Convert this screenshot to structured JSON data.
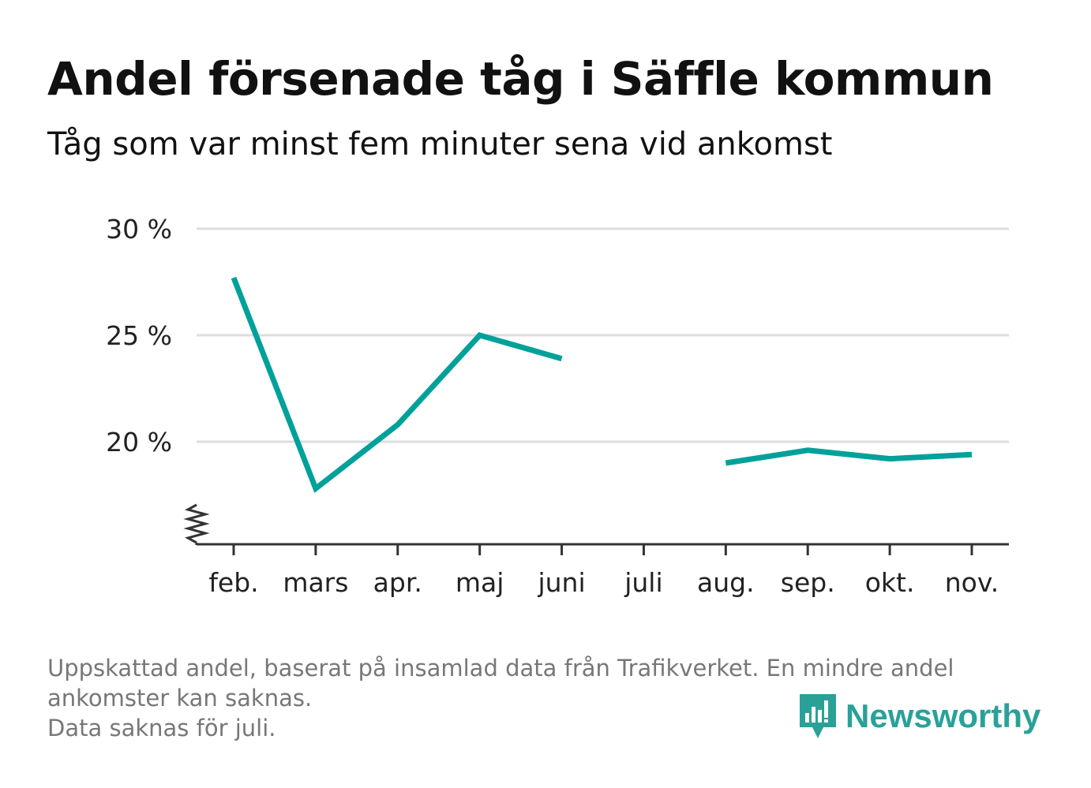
{
  "chart_data": {
    "type": "line",
    "title": "Andel försenade tåg i Säffle kommun",
    "subtitle": "Tåg som var minst fem minuter sena vid ankomst",
    "categories": [
      "feb.",
      "mars",
      "apr.",
      "maj",
      "juni",
      "juli",
      "aug.",
      "sep.",
      "okt.",
      "nov."
    ],
    "series": [
      {
        "values": [
          27.7,
          17.8,
          20.8,
          25.0,
          23.9,
          null,
          19.0,
          19.6,
          19.2,
          19.4
        ]
      }
    ],
    "y_ticks": [
      {
        "value": 20,
        "label": "20 %"
      },
      {
        "value": 25,
        "label": "25 %"
      },
      {
        "value": 30,
        "label": "30 %"
      }
    ],
    "ylim": [
      15.2,
      30
    ],
    "y_axis_break": true,
    "grid": true,
    "line_color": "#00a19a",
    "footnote": [
      "Uppskattad andel, baserat på insamlad data från Trafikverket. En mindre andel",
      "ankomster kan saknas.",
      "Data saknas för juli."
    ]
  },
  "logo": {
    "text": "Newsworthy",
    "icon": "newsworthy-chart-bubble-icon",
    "color": "#2aa198"
  }
}
